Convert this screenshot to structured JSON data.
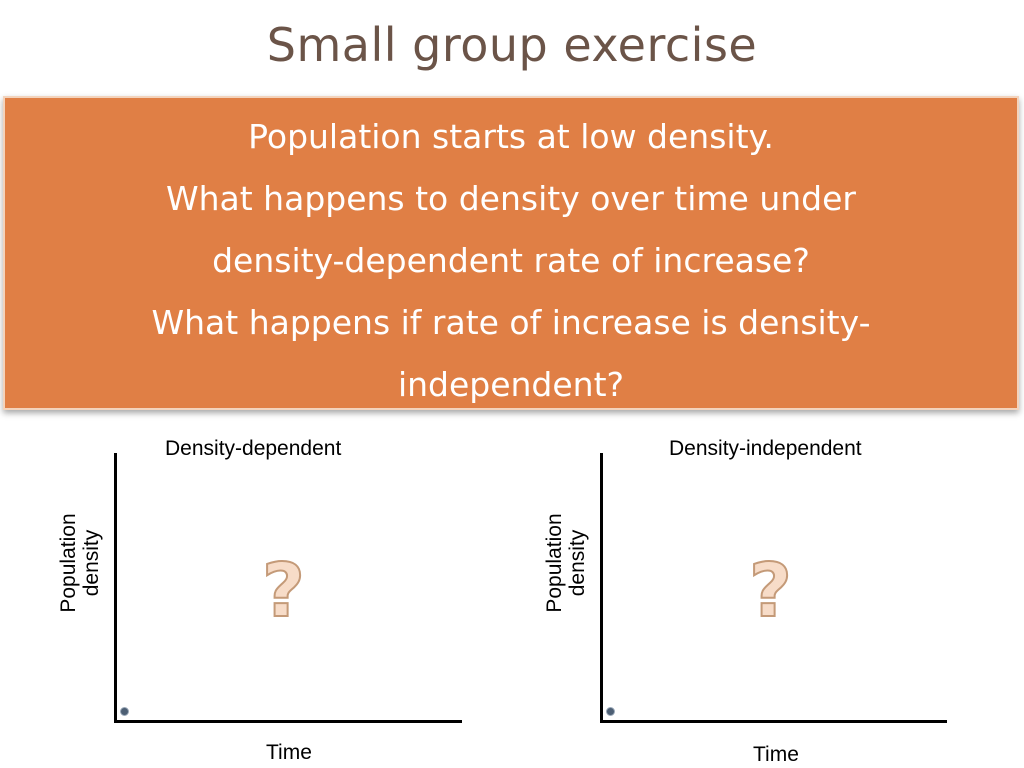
{
  "slide": {
    "title": "Small group exercise",
    "prompt_lines": [
      "Population starts at low density.",
      "What happens to density over time under",
      "density-dependent rate of increase?",
      "What happens if rate of increase is density-",
      "independent?"
    ]
  },
  "graphs": [
    {
      "title": "Density-dependent",
      "ylabel_line1": "Population",
      "ylabel_line2": "density",
      "xlabel": "Time",
      "placeholder": "?"
    },
    {
      "title": "Density-independent",
      "ylabel_line1": "Population",
      "ylabel_line2": "density",
      "xlabel": "Time",
      "placeholder": "?"
    }
  ],
  "colors": {
    "title": "#6b5448",
    "prompt_background": "#e07f45",
    "prompt_text": "#ffffff",
    "starting_point": "#4d5f74"
  }
}
